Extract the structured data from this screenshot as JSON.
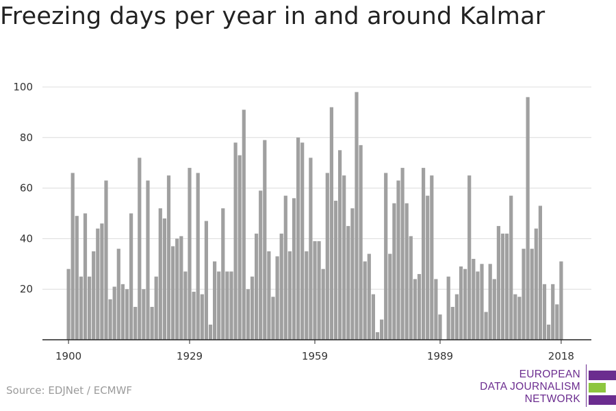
{
  "chart_data": {
    "type": "bar",
    "title": "Freezing days per year in and around Kalmar",
    "xlabel": "",
    "ylabel": "",
    "ylim": [
      0,
      100
    ],
    "y_ticks": [
      20,
      40,
      60,
      80,
      100
    ],
    "x_tick_labels": [
      "1900",
      "1929",
      "1959",
      "1989",
      "2018"
    ],
    "grid": true,
    "legend": "none",
    "bar_color": "#a0a0a0",
    "categories": [
      1900,
      1901,
      1902,
      1903,
      1904,
      1905,
      1906,
      1907,
      1908,
      1909,
      1910,
      1911,
      1912,
      1913,
      1914,
      1915,
      1916,
      1917,
      1918,
      1919,
      1920,
      1921,
      1922,
      1923,
      1924,
      1925,
      1926,
      1927,
      1928,
      1929,
      1930,
      1931,
      1932,
      1933,
      1934,
      1935,
      1936,
      1937,
      1938,
      1939,
      1940,
      1941,
      1942,
      1943,
      1944,
      1945,
      1946,
      1947,
      1948,
      1949,
      1950,
      1951,
      1952,
      1953,
      1954,
      1955,
      1956,
      1957,
      1958,
      1959,
      1960,
      1961,
      1962,
      1963,
      1964,
      1965,
      1966,
      1967,
      1968,
      1969,
      1970,
      1971,
      1972,
      1973,
      1974,
      1975,
      1976,
      1977,
      1978,
      1979,
      1980,
      1981,
      1982,
      1983,
      1984,
      1985,
      1986,
      1987,
      1988,
      1989,
      1990,
      1991,
      1992,
      1993,
      1994,
      1995,
      1996,
      1997,
      1998,
      1999,
      2000,
      2001,
      2002,
      2003,
      2004,
      2005,
      2006,
      2007,
      2008,
      2009,
      2010,
      2011,
      2012,
      2013,
      2014,
      2015,
      2016,
      2017,
      2018
    ],
    "values": [
      28,
      66,
      49,
      25,
      50,
      25,
      35,
      44,
      46,
      63,
      16,
      21,
      36,
      22,
      20,
      50,
      13,
      72,
      20,
      63,
      13,
      25,
      52,
      48,
      65,
      37,
      40,
      41,
      27,
      68,
      19,
      66,
      18,
      47,
      6,
      31,
      27,
      52,
      27,
      27,
      78,
      73,
      91,
      20,
      25,
      42,
      59,
      79,
      35,
      17,
      33,
      42,
      57,
      35,
      56,
      80,
      78,
      35,
      72,
      39,
      39,
      28,
      66,
      92,
      55,
      75,
      65,
      45,
      52,
      98,
      77,
      31,
      34,
      18,
      3,
      8,
      66,
      34,
      54,
      63,
      68,
      54,
      41,
      24,
      26,
      68,
      57,
      65,
      24,
      10,
      0,
      25,
      13,
      18,
      29,
      28,
      65,
      32,
      27,
      30,
      11,
      30,
      24,
      45,
      42,
      42,
      57,
      18,
      17,
      36,
      96,
      36,
      44,
      53,
      22,
      6,
      22,
      14,
      31
    ]
  },
  "footer": {
    "source": "Source: EDJNet / ECMWF",
    "logo_lines": [
      "EUROPEAN",
      "DATA JOURNALISM",
      "NETWORK"
    ],
    "logo_colors": {
      "purple": "#6b2c8f",
      "green": "#8dc63f"
    }
  }
}
